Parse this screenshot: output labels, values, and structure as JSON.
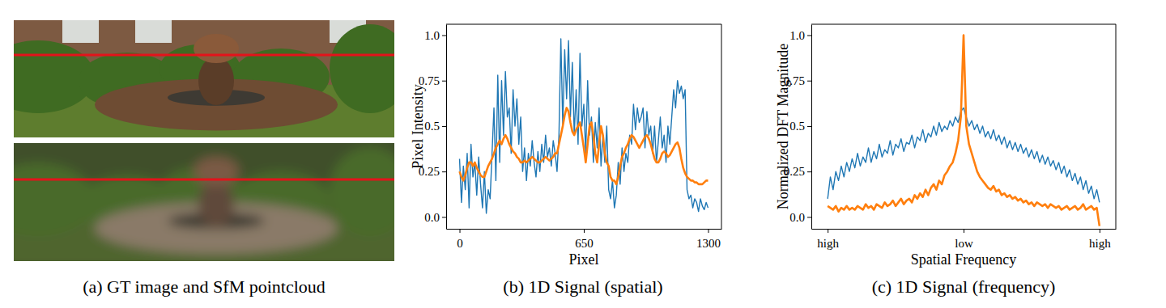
{
  "image_panel": {
    "caption": "(a) GT image and SfM pointcloud"
  },
  "chart_data": [
    {
      "type": "line",
      "title": "(b) 1D Signal (spatial)",
      "x_label": "Pixel",
      "y_label": "Pixel Intensity",
      "xlim": [
        -70,
        1370
      ],
      "ylim": [
        -0.065,
        1.06
      ],
      "xticks": [
        0,
        650,
        1300
      ],
      "yticks": [
        {
          "value": 0,
          "label": "0.0"
        },
        0.25,
        {
          "value": 0.5,
          "label": "0.5"
        },
        0.75,
        {
          "value": 1,
          "label": "1.0"
        }
      ],
      "x": [
        0,
        10,
        20,
        30,
        40,
        50,
        60,
        70,
        80,
        90,
        100,
        110,
        120,
        130,
        140,
        150,
        160,
        170,
        180,
        190,
        200,
        210,
        220,
        230,
        240,
        250,
        260,
        270,
        280,
        290,
        300,
        310,
        320,
        330,
        340,
        350,
        360,
        370,
        380,
        390,
        400,
        410,
        420,
        430,
        440,
        450,
        460,
        470,
        480,
        490,
        500,
        510,
        520,
        530,
        540,
        550,
        560,
        570,
        580,
        590,
        600,
        610,
        620,
        630,
        640,
        650,
        660,
        670,
        680,
        690,
        700,
        710,
        720,
        730,
        740,
        750,
        760,
        770,
        780,
        790,
        800,
        810,
        820,
        830,
        840,
        850,
        860,
        870,
        880,
        890,
        900,
        910,
        920,
        930,
        940,
        950,
        960,
        970,
        980,
        990,
        1000,
        1010,
        1020,
        1030,
        1040,
        1050,
        1060,
        1070,
        1080,
        1090,
        1100,
        1110,
        1120,
        1130,
        1140,
        1150,
        1160,
        1170,
        1180,
        1190,
        1200,
        1210,
        1220,
        1230,
        1240,
        1250,
        1260,
        1270,
        1280,
        1290,
        1300
      ],
      "series": [
        {
          "color": "#1f77b4",
          "values": [
            0.32,
            0.08,
            0.28,
            0.15,
            0.35,
            0.05,
            0.4,
            0.22,
            0.3,
            0.12,
            0.33,
            0.18,
            0.05,
            0.25,
            0.02,
            0.15,
            0.1,
            0.35,
            0.6,
            0.2,
            0.78,
            0.3,
            0.75,
            0.45,
            0.8,
            0.55,
            0.6,
            0.35,
            0.7,
            0.5,
            0.65,
            0.4,
            0.55,
            0.25,
            0.38,
            0.2,
            0.35,
            0.28,
            0.42,
            0.3,
            0.22,
            0.36,
            0.25,
            0.4,
            0.3,
            0.45,
            0.33,
            0.38,
            0.28,
            0.42,
            0.35,
            0.25,
            0.45,
            0.98,
            0.5,
            0.92,
            0.65,
            0.97,
            0.55,
            0.85,
            0.45,
            0.7,
            0.4,
            0.9,
            0.5,
            0.62,
            0.35,
            0.75,
            0.45,
            0.55,
            0.3,
            0.52,
            0.38,
            0.6,
            0.28,
            0.45,
            0.3,
            0.5,
            0.15,
            0.1,
            0.2,
            0.05,
            0.12,
            0.3,
            0.18,
            0.38,
            0.25,
            0.35,
            0.3,
            0.45,
            0.4,
            0.62,
            0.48,
            0.6,
            0.52,
            0.55,
            0.6,
            0.38,
            0.58,
            0.45,
            0.5,
            0.35,
            0.5,
            0.3,
            0.42,
            0.55,
            0.38,
            0.45,
            0.3,
            0.5,
            0.4,
            0.55,
            0.7,
            0.6,
            0.75,
            0.68,
            0.72,
            0.65,
            0.7,
            0.15,
            0.1,
            0.12,
            0.05,
            0.1,
            0.08,
            0.03,
            0.1,
            0.06,
            0.04,
            0.08,
            0.05
          ]
        },
        {
          "color": "#ff7f0e",
          "values": [
            0.25,
            0.22,
            0.2,
            0.23,
            0.27,
            0.3,
            0.3,
            0.28,
            0.3,
            0.27,
            0.25,
            0.23,
            0.22,
            0.22,
            0.25,
            0.28,
            0.3,
            0.32,
            0.35,
            0.38,
            0.4,
            0.42,
            0.4,
            0.43,
            0.45,
            0.43,
            0.4,
            0.38,
            0.36,
            0.35,
            0.33,
            0.32,
            0.3,
            0.3,
            0.31,
            0.3,
            0.31,
            0.32,
            0.33,
            0.32,
            0.31,
            0.3,
            0.3,
            0.31,
            0.32,
            0.33,
            0.32,
            0.31,
            0.32,
            0.33,
            0.35,
            0.35,
            0.4,
            0.45,
            0.5,
            0.56,
            0.6,
            0.58,
            0.52,
            0.47,
            0.45,
            0.48,
            0.5,
            0.52,
            0.45,
            0.38,
            0.3,
            0.4,
            0.5,
            0.52,
            0.45,
            0.35,
            0.3,
            0.4,
            0.5,
            0.45,
            0.35,
            0.3,
            0.28,
            0.22,
            0.2,
            0.2,
            0.18,
            0.22,
            0.28,
            0.33,
            0.35,
            0.38,
            0.4,
            0.43,
            0.45,
            0.44,
            0.42,
            0.4,
            0.38,
            0.4,
            0.42,
            0.44,
            0.45,
            0.43,
            0.4,
            0.36,
            0.32,
            0.3,
            0.3,
            0.32,
            0.35,
            0.36,
            0.35,
            0.33,
            0.34,
            0.36,
            0.38,
            0.4,
            0.41,
            0.38,
            0.32,
            0.27,
            0.24,
            0.22,
            0.21,
            0.2,
            0.2,
            0.19,
            0.19,
            0.18,
            0.18,
            0.18,
            0.19,
            0.2,
            0.2
          ]
        }
      ]
    },
    {
      "type": "line",
      "title": "(c) 1D Signal (frequency)",
      "x_label": "Spatial Frequency",
      "y_label": "Normalized DFT Magnitude",
      "xlim": [
        -0.56,
        0.56
      ],
      "ylim": [
        -0.065,
        1.06
      ],
      "xticks": [
        {
          "value": -0.5,
          "label": "high"
        },
        {
          "value": 0,
          "label": "low"
        },
        {
          "value": 0.5,
          "label": "high"
        }
      ],
      "yticks": [
        {
          "value": 0,
          "label": "0.0"
        },
        0.25,
        {
          "value": 0.5,
          "label": "0.5"
        },
        0.75,
        {
          "value": 1,
          "label": "1.0"
        }
      ],
      "x": [
        -0.5,
        -0.49,
        -0.48,
        -0.47,
        -0.46,
        -0.45,
        -0.44,
        -0.43,
        -0.42,
        -0.41,
        -0.4,
        -0.39,
        -0.38,
        -0.37,
        -0.36,
        -0.35,
        -0.34,
        -0.33,
        -0.32,
        -0.31,
        -0.3,
        -0.29,
        -0.28,
        -0.27,
        -0.26,
        -0.25,
        -0.24,
        -0.23,
        -0.22,
        -0.21,
        -0.2,
        -0.19,
        -0.18,
        -0.17,
        -0.16,
        -0.15,
        -0.14,
        -0.13,
        -0.12,
        -0.11,
        -0.1,
        -0.09,
        -0.08,
        -0.07,
        -0.06,
        -0.05,
        -0.04,
        -0.03,
        -0.02,
        -0.01,
        0,
        0.01,
        0.02,
        0.03,
        0.04,
        0.05,
        0.06,
        0.07,
        0.08,
        0.09,
        0.1,
        0.11,
        0.12,
        0.13,
        0.14,
        0.15,
        0.16,
        0.17,
        0.18,
        0.19,
        0.2,
        0.21,
        0.22,
        0.23,
        0.24,
        0.25,
        0.26,
        0.27,
        0.28,
        0.29,
        0.3,
        0.31,
        0.32,
        0.33,
        0.34,
        0.35,
        0.36,
        0.37,
        0.38,
        0.39,
        0.4,
        0.41,
        0.42,
        0.43,
        0.44,
        0.45,
        0.46,
        0.47,
        0.48,
        0.49,
        0.5
      ],
      "series": [
        {
          "color": "#1f77b4",
          "values": [
            0.1,
            0.22,
            0.15,
            0.25,
            0.2,
            0.28,
            0.22,
            0.3,
            0.25,
            0.32,
            0.27,
            0.35,
            0.28,
            0.33,
            0.3,
            0.38,
            0.3,
            0.36,
            0.32,
            0.4,
            0.33,
            0.37,
            0.35,
            0.42,
            0.34,
            0.4,
            0.38,
            0.43,
            0.36,
            0.41,
            0.4,
            0.45,
            0.38,
            0.44,
            0.42,
            0.48,
            0.41,
            0.46,
            0.44,
            0.5,
            0.45,
            0.52,
            0.47,
            0.5,
            0.48,
            0.53,
            0.5,
            0.55,
            0.52,
            0.58,
            0.6,
            0.55,
            0.5,
            0.53,
            0.48,
            0.51,
            0.46,
            0.5,
            0.44,
            0.47,
            0.43,
            0.48,
            0.42,
            0.45,
            0.4,
            0.44,
            0.38,
            0.42,
            0.37,
            0.41,
            0.36,
            0.4,
            0.35,
            0.38,
            0.33,
            0.37,
            0.32,
            0.36,
            0.3,
            0.34,
            0.29,
            0.33,
            0.28,
            0.31,
            0.26,
            0.3,
            0.24,
            0.28,
            0.22,
            0.26,
            0.2,
            0.24,
            0.18,
            0.22,
            0.15,
            0.2,
            0.13,
            0.17,
            0.1,
            0.15,
            0.08
          ]
        },
        {
          "color": "#ff7f0e",
          "values": [
            0.06,
            0.05,
            0.04,
            0.06,
            0.03,
            0.05,
            0.04,
            0.06,
            0.04,
            0.05,
            0.04,
            0.06,
            0.05,
            0.04,
            0.07,
            0.05,
            0.06,
            0.04,
            0.07,
            0.06,
            0.05,
            0.08,
            0.06,
            0.07,
            0.09,
            0.06,
            0.08,
            0.1,
            0.07,
            0.09,
            0.1,
            0.08,
            0.12,
            0.1,
            0.13,
            0.11,
            0.15,
            0.12,
            0.16,
            0.18,
            0.15,
            0.2,
            0.18,
            0.23,
            0.25,
            0.28,
            0.3,
            0.35,
            0.42,
            0.55,
            1.0,
            0.5,
            0.4,
            0.35,
            0.3,
            0.25,
            0.22,
            0.2,
            0.18,
            0.16,
            0.15,
            0.17,
            0.14,
            0.15,
            0.12,
            0.13,
            0.11,
            0.12,
            0.1,
            0.11,
            0.09,
            0.1,
            0.08,
            0.09,
            0.07,
            0.08,
            0.06,
            0.08,
            0.07,
            0.06,
            0.07,
            0.05,
            0.07,
            0.06,
            0.05,
            0.06,
            0.04,
            0.05,
            0.06,
            0.04,
            0.05,
            0.06,
            0.04,
            0.05,
            0.07,
            0.04,
            0.05,
            0.06,
            0.04,
            0.05,
            -0.05
          ]
        }
      ]
    }
  ]
}
